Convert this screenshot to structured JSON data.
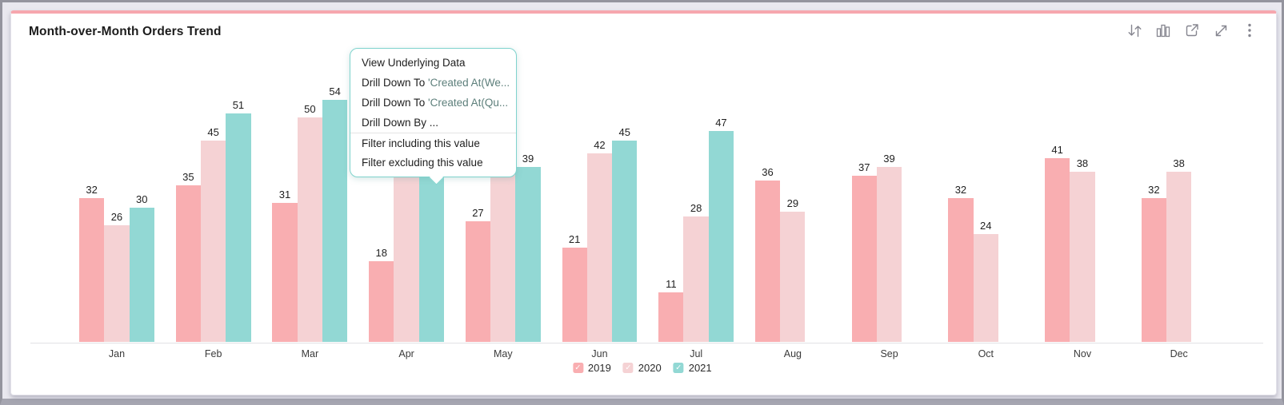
{
  "widget": {
    "title": "Month-over-Month Orders Trend"
  },
  "toolbar": {
    "icons": [
      {
        "name": "sort-icon"
      },
      {
        "name": "chart-type-icon"
      },
      {
        "name": "open-in-new-icon"
      },
      {
        "name": "expand-icon"
      },
      {
        "name": "more-options-icon"
      }
    ]
  },
  "context_menu": {
    "border_color": "#7fd3cd",
    "items": [
      {
        "prefix": "View Underlying Data",
        "suffix": ""
      },
      {
        "prefix": "Drill Down To ",
        "suffix": "'Created At(We..."
      },
      {
        "prefix": "Drill Down To ",
        "suffix": "'Created At(Qu..."
      },
      {
        "prefix": "Drill Down By ...",
        "suffix": ""
      },
      {
        "prefix": "Filter including this value",
        "suffix": ""
      },
      {
        "prefix": "Filter excluding this value",
        "suffix": ""
      }
    ]
  },
  "chart_data": {
    "type": "bar",
    "title": "Month-over-Month Orders Trend",
    "categories": [
      "Jan",
      "Feb",
      "Mar",
      "Apr",
      "May",
      "Jun",
      "Jul",
      "Aug",
      "Sep",
      "Oct",
      "Nov",
      "Dec"
    ],
    "series": [
      {
        "name": "2019",
        "color": "#f9aeb1",
        "values": [
          32,
          35,
          31,
          18,
          27,
          21,
          11,
          36,
          37,
          32,
          41,
          32
        ],
        "label_hidden_indices": []
      },
      {
        "name": "2020",
        "color": "#f5d2d4",
        "values": [
          26,
          45,
          50,
          40,
          38,
          42,
          28,
          29,
          39,
          24,
          38,
          38
        ],
        "label_hidden_indices": [
          3,
          4
        ],
        "note": "Apr and May bar tops/labels hidden behind open context menu; values estimated from bar height"
      },
      {
        "name": "2021",
        "color": "#92d8d4",
        "values": [
          30,
          51,
          54,
          39,
          39,
          45,
          47,
          null,
          null,
          null,
          null,
          null
        ],
        "label_hidden_indices": [
          3
        ],
        "note": "Apr bar top/label hidden behind open context menu; value estimated from bar height"
      }
    ],
    "value_labels": true,
    "legend_position": "bottom",
    "grid": false,
    "ylim": [
      0,
      58
    ]
  },
  "legend": {
    "items": [
      {
        "label": "2019",
        "color": "#f9aeb1",
        "checked": true
      },
      {
        "label": "2020",
        "color": "#f5d2d4",
        "checked": true
      },
      {
        "label": "2021",
        "color": "#92d8d4",
        "checked": true
      }
    ],
    "check_glyph": "✓"
  },
  "colors": {
    "accent_top_bar": "#f6a7ae",
    "card_background": "#ffffff",
    "frame_background": "#e9e8ef",
    "axis_line": "#e2e2e6",
    "icon_gray": "#85858f"
  }
}
